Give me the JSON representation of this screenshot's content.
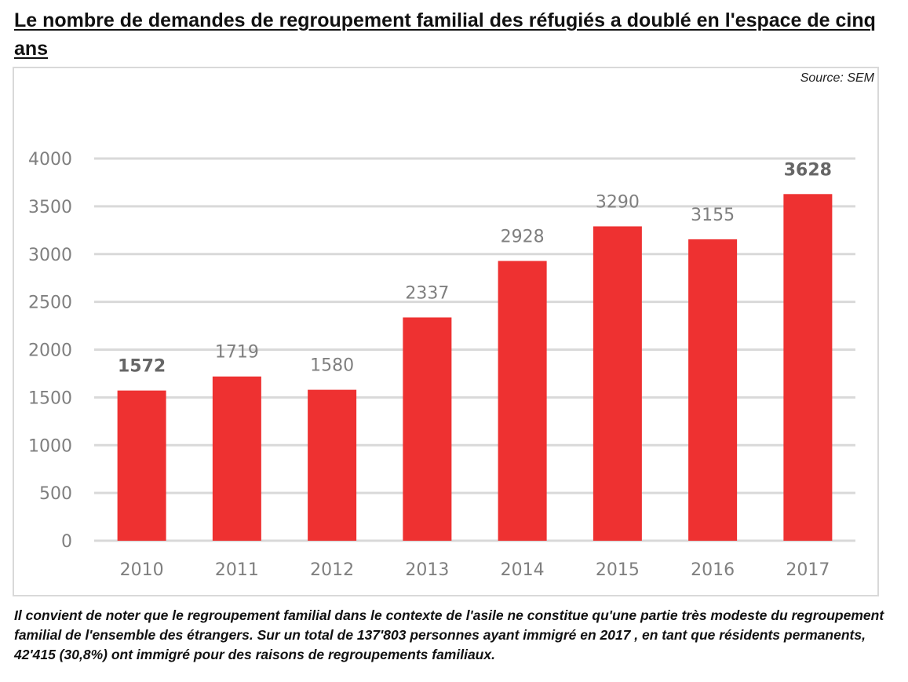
{
  "title": "Le nombre de demandes de regroupement familial des réfugiés a doublé en l'espace de cinq ans",
  "source": "Source: SEM",
  "note": "Il convient de noter que le regroupement familial dans le contexte de l'asile ne constitue qu'une partie très modeste du regroupement familial de l'ensemble des étrangers. Sur un total de 137'803 personnes ayant immigré en 2017 , en tant que résidents permanents, 42'415 (30,8%) ont immigré pour des raisons de regroupements familiaux.",
  "chart_data": {
    "type": "bar",
    "categories": [
      "2010",
      "2011",
      "2012",
      "2013",
      "2014",
      "2015",
      "2016",
      "2017"
    ],
    "values": [
      1572,
      1719,
      1580,
      2337,
      2928,
      3290,
      3155,
      3628
    ],
    "data_labels": [
      "1572",
      "1719",
      "1580",
      "2337",
      "2928",
      "3290",
      "3155",
      "3628"
    ],
    "bold_labels": [
      "2010",
      "2017"
    ],
    "ylim": [
      0,
      4000
    ],
    "yticks": [
      0,
      500,
      1000,
      1500,
      2000,
      2500,
      3000,
      3500,
      4000
    ],
    "grid": true,
    "bar_color": "#ee3131",
    "grid_color": "#d9d9d9",
    "label_color": "#7f7f7f"
  }
}
